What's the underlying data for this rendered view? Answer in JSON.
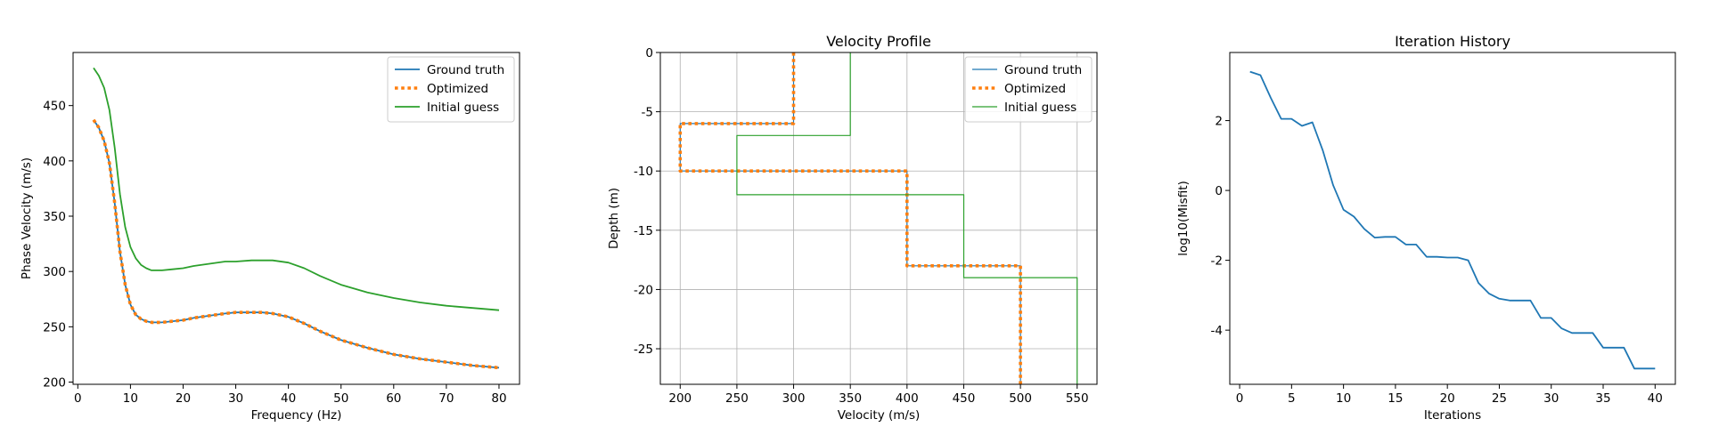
{
  "colors": {
    "ground_truth": "#1f77b4",
    "optimized": "#ff7f0e",
    "initial_guess": "#2ca02c",
    "grid": "#b0b0b0",
    "axes": "#000000"
  },
  "chart_data": [
    {
      "type": "line",
      "title": "",
      "xlabel": "Frequency (Hz)",
      "ylabel": "Phase Velocity (m/s)",
      "xlim": [
        -0.9,
        83.9
      ],
      "ylim": [
        198,
        498
      ],
      "xticks": [
        0,
        10,
        20,
        30,
        40,
        50,
        60,
        70,
        80
      ],
      "yticks": [
        200,
        250,
        300,
        350,
        400,
        450
      ],
      "grid": false,
      "legend_position": "top-right",
      "series": [
        {
          "name": "Ground truth",
          "color": "#1f77b4",
          "style": "solid",
          "x": [
            3,
            4,
            5,
            6,
            7,
            8,
            9,
            10,
            11,
            12,
            13,
            14,
            16,
            18,
            20,
            22,
            25,
            28,
            30,
            33,
            35,
            37,
            40,
            43,
            46,
            50,
            55,
            60,
            65,
            70,
            75,
            80
          ],
          "y": [
            437,
            430,
            418,
            398,
            362,
            318,
            288,
            270,
            261,
            257,
            255,
            254,
            254,
            255,
            256,
            258,
            260,
            262,
            263,
            263,
            263,
            262,
            259,
            253,
            246,
            238,
            231,
            225,
            221,
            218,
            215,
            213
          ]
        },
        {
          "name": "Optimized",
          "color": "#ff7f0e",
          "style": "dotted",
          "x": [
            3,
            4,
            5,
            6,
            7,
            8,
            9,
            10,
            11,
            12,
            13,
            14,
            16,
            18,
            20,
            22,
            25,
            28,
            30,
            33,
            35,
            37,
            40,
            43,
            46,
            50,
            55,
            60,
            65,
            70,
            75,
            80
          ],
          "y": [
            437,
            430,
            418,
            398,
            362,
            318,
            288,
            270,
            261,
            257,
            255,
            254,
            254,
            255,
            256,
            258,
            260,
            262,
            263,
            263,
            263,
            262,
            259,
            253,
            246,
            238,
            231,
            225,
            221,
            218,
            215,
            213
          ]
        },
        {
          "name": "Initial guess",
          "color": "#2ca02c",
          "style": "solid",
          "x": [
            3,
            4,
            5,
            6,
            7,
            8,
            9,
            10,
            11,
            12,
            13,
            14,
            16,
            18,
            20,
            22,
            25,
            28,
            30,
            33,
            35,
            37,
            40,
            43,
            46,
            50,
            55,
            60,
            65,
            70,
            75,
            80
          ],
          "y": [
            484,
            477,
            466,
            446,
            412,
            370,
            340,
            322,
            312,
            306,
            303,
            301,
            301,
            302,
            303,
            305,
            307,
            309,
            309,
            310,
            310,
            310,
            308,
            303,
            296,
            288,
            281,
            276,
            272,
            269,
            267,
            265
          ]
        }
      ]
    },
    {
      "type": "line",
      "title": "Velocity Profile",
      "xlabel": "Velocity (m/s)",
      "ylabel": "Depth (m)",
      "xlim": [
        182.5,
        567.5
      ],
      "ylim": [
        -28,
        0
      ],
      "xticks": [
        200,
        250,
        300,
        350,
        400,
        450,
        500,
        550
      ],
      "yticks": [
        0,
        -5,
        -10,
        -15,
        -20,
        -25
      ],
      "grid": true,
      "legend_position": "top-right",
      "series": [
        {
          "name": "Ground truth",
          "color": "#1f77b4",
          "style": "solid",
          "x": [
            300,
            300,
            200,
            200,
            400,
            400,
            500,
            500
          ],
          "y": [
            0,
            -6,
            -6,
            -10,
            -10,
            -18,
            -18,
            -28
          ]
        },
        {
          "name": "Optimized",
          "color": "#ff7f0e",
          "style": "dotted",
          "x": [
            300,
            300,
            200,
            200,
            400,
            400,
            500,
            500
          ],
          "y": [
            0,
            -6,
            -6,
            -10,
            -10,
            -18,
            -18,
            -28
          ]
        },
        {
          "name": "Initial guess",
          "color": "#2ca02c",
          "style": "solid",
          "x": [
            350,
            350,
            250,
            250,
            450,
            450,
            550,
            550
          ],
          "y": [
            0,
            -7,
            -7,
            -12,
            -12,
            -19,
            -19,
            -28
          ]
        }
      ]
    },
    {
      "type": "line",
      "title": "Iteration History",
      "xlabel": "Iterations",
      "ylabel": "log10(Misfit)",
      "xlim": [
        -0.95,
        41.95
      ],
      "ylim": [
        -5.55,
        3.95
      ],
      "xticks": [
        0,
        5,
        10,
        15,
        20,
        25,
        30,
        35,
        40
      ],
      "yticks": [
        2,
        0,
        -2,
        -4
      ],
      "grid": false,
      "series": [
        {
          "name": "",
          "color": "#1f77b4",
          "style": "solid",
          "x": [
            1,
            2,
            3,
            4,
            5,
            6,
            7,
            8,
            9,
            10,
            11,
            12,
            13,
            14,
            15,
            16,
            17,
            18,
            19,
            20,
            21,
            22,
            23,
            24,
            25,
            26,
            27,
            28,
            29,
            30,
            31,
            32,
            33,
            34,
            35,
            36,
            37,
            38,
            39,
            40
          ],
          "y": [
            3.4,
            3.3,
            2.65,
            2.05,
            2.05,
            1.85,
            1.95,
            1.15,
            0.15,
            -0.55,
            -0.75,
            -1.1,
            -1.35,
            -1.33,
            -1.33,
            -1.55,
            -1.55,
            -1.9,
            -1.9,
            -1.92,
            -1.92,
            -2.0,
            -2.65,
            -2.95,
            -3.1,
            -3.15,
            -3.15,
            -3.15,
            -3.65,
            -3.65,
            -3.95,
            -4.08,
            -4.08,
            -4.08,
            -4.5,
            -4.5,
            -4.5,
            -5.1,
            -5.1,
            -5.1
          ]
        }
      ]
    }
  ]
}
